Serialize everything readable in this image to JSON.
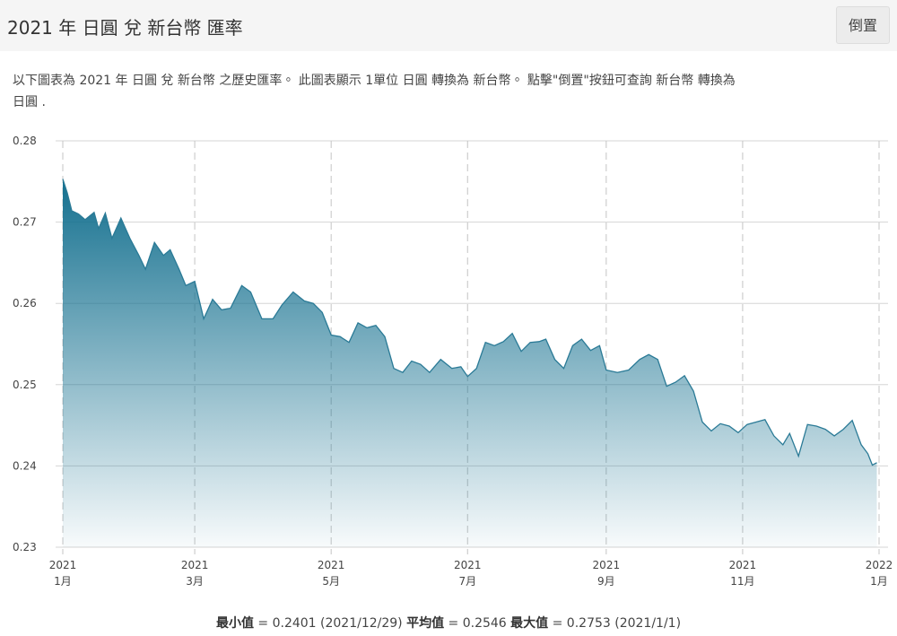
{
  "header": {
    "title": "2021 年 日圓 兌 新台幣 匯率",
    "button": "倒置"
  },
  "description": [
    "以下圖表為 2021 年 日圓 兌 新台幣 之歷史匯率。 此圖表顯示 1單位 日圓 轉換為 新台幣。 點擊\"倒置\"按鈕可查詢 新台幣 轉換為",
    "日圓 ."
  ],
  "chart_data": {
    "type": "area",
    "x": [
      "2021-01-01",
      "2021-01-03",
      "2021-01-05",
      "2021-01-08",
      "2021-01-11",
      "2021-01-15",
      "2021-01-17",
      "2021-01-20",
      "2021-01-23",
      "2021-01-27",
      "2021-01-31",
      "2021-02-04",
      "2021-02-07",
      "2021-02-11",
      "2021-02-15",
      "2021-02-18",
      "2021-02-22",
      "2021-02-25",
      "2021-03-01",
      "2021-03-05",
      "2021-03-09",
      "2021-03-13",
      "2021-03-17",
      "2021-03-22",
      "2021-03-26",
      "2021-03-31",
      "2021-04-05",
      "2021-04-09",
      "2021-04-14",
      "2021-04-19",
      "2021-04-23",
      "2021-04-27",
      "2021-05-01",
      "2021-05-05",
      "2021-05-09",
      "2021-05-13",
      "2021-05-17",
      "2021-05-21",
      "2021-05-25",
      "2021-05-29",
      "2021-06-02",
      "2021-06-06",
      "2021-06-10",
      "2021-06-14",
      "2021-06-19",
      "2021-06-24",
      "2021-06-28",
      "2021-07-01",
      "2021-07-05",
      "2021-07-09",
      "2021-07-13",
      "2021-07-17",
      "2021-07-21",
      "2021-07-25",
      "2021-07-29",
      "2021-08-02",
      "2021-08-05",
      "2021-08-09",
      "2021-08-13",
      "2021-08-17",
      "2021-08-21",
      "2021-08-25",
      "2021-08-29",
      "2021-09-01",
      "2021-09-06",
      "2021-09-11",
      "2021-09-16",
      "2021-09-20",
      "2021-09-24",
      "2021-09-28",
      "2021-10-02",
      "2021-10-06",
      "2021-10-10",
      "2021-10-14",
      "2021-10-18",
      "2021-10-22",
      "2021-10-26",
      "2021-10-30",
      "2021-11-03",
      "2021-11-07",
      "2021-11-11",
      "2021-11-15",
      "2021-11-19",
      "2021-11-22",
      "2021-11-26",
      "2021-11-30",
      "2021-12-04",
      "2021-12-08",
      "2021-12-12",
      "2021-12-16",
      "2021-12-20",
      "2021-12-24",
      "2021-12-27",
      "2021-12-29",
      "2021-12-31"
    ],
    "series": [
      {
        "name": "JPY/TWD",
        "color": "#2a7a96",
        "values": [
          0.2753,
          0.2736,
          0.2714,
          0.271,
          0.2703,
          0.2712,
          0.2692,
          0.2711,
          0.268,
          0.2705,
          0.268,
          0.2659,
          0.2642,
          0.2675,
          0.2659,
          0.2666,
          0.2642,
          0.2622,
          0.2627,
          0.2581,
          0.2605,
          0.2592,
          0.2594,
          0.2622,
          0.2614,
          0.2581,
          0.2581,
          0.2598,
          0.2614,
          0.2603,
          0.26,
          0.2589,
          0.2561,
          0.2559,
          0.2552,
          0.2576,
          0.257,
          0.2573,
          0.2559,
          0.252,
          0.2515,
          0.2529,
          0.2525,
          0.2515,
          0.2531,
          0.252,
          0.2522,
          0.251,
          0.252,
          0.2552,
          0.2548,
          0.2553,
          0.2563,
          0.2541,
          0.2552,
          0.2553,
          0.2556,
          0.2531,
          0.252,
          0.2548,
          0.2556,
          0.2542,
          0.2548,
          0.2518,
          0.2515,
          0.2518,
          0.2531,
          0.2537,
          0.2531,
          0.2498,
          0.2503,
          0.2511,
          0.2492,
          0.2454,
          0.2443,
          0.2452,
          0.2449,
          0.2441,
          0.2451,
          0.2454,
          0.2457,
          0.2437,
          0.2426,
          0.244,
          0.2412,
          0.2451,
          0.2449,
          0.2445,
          0.2437,
          0.2445,
          0.2456,
          0.2426,
          0.2415,
          0.2401,
          0.2404
        ]
      }
    ],
    "xlim": [
      "2021-01-01",
      "2022-01-01"
    ],
    "xticks": [
      {
        "value": "2021-01-01",
        "label": [
          "2021",
          "1月"
        ]
      },
      {
        "value": "2021-03-01",
        "label": [
          "2021",
          "3月"
        ]
      },
      {
        "value": "2021-05-01",
        "label": [
          "2021",
          "5月"
        ]
      },
      {
        "value": "2021-07-01",
        "label": [
          "2021",
          "7月"
        ]
      },
      {
        "value": "2021-09-01",
        "label": [
          "2021",
          "9月"
        ]
      },
      {
        "value": "2021-11-01",
        "label": [
          "2021",
          "11月"
        ]
      },
      {
        "value": "2022-01-01",
        "label": [
          "2022",
          "1月"
        ]
      }
    ],
    "ylim": [
      0.23,
      0.28
    ],
    "yticks": [
      0.23,
      0.24,
      0.25,
      0.26,
      0.27,
      0.28
    ],
    "grid": true
  },
  "stats": [
    {
      "label": "最小值",
      "text": "= 0.2401 (2021/12/29)"
    },
    {
      "label": "平均值",
      "text": "= 0.2546"
    },
    {
      "label": "最大值",
      "text": "= 0.2753 (2021/1/1)"
    }
  ]
}
